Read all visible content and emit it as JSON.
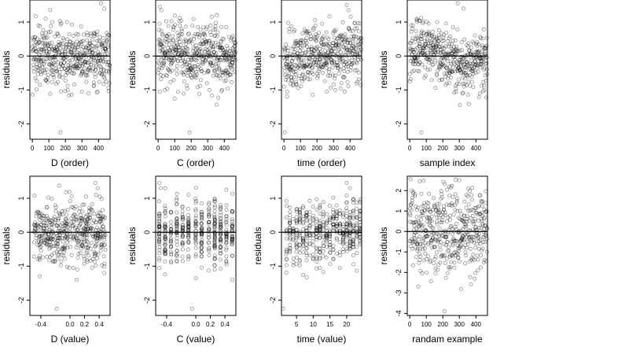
{
  "chart_data": [
    {
      "type": "scatter",
      "xlabel": "D (order)",
      "ylabel": "residuals",
      "xlim": [
        -15,
        470
      ],
      "ylim": [
        -2.45,
        1.65
      ],
      "xticks": [
        0,
        100,
        200,
        300,
        400
      ],
      "yticks": [
        -2,
        -1,
        0,
        1
      ],
      "ref_line": 0,
      "n": 470,
      "trend": "none",
      "y_spread": 0.45,
      "x_kind": "index",
      "highlight": [
        {
          "x": 40,
          "y": 0.05
        },
        {
          "x": 170,
          "y": -2.25
        },
        {
          "x": 300,
          "y": -1.05
        },
        {
          "x": 340,
          "y": -1.1
        },
        {
          "x": 415,
          "y": 1.55
        },
        {
          "x": 435,
          "y": 1.4
        },
        {
          "x": 80,
          "y": 1.1
        },
        {
          "x": 120,
          "y": 1.0
        }
      ]
    },
    {
      "type": "scatter",
      "xlabel": "C (order)",
      "ylabel": "residuals",
      "xlim": [
        -15,
        470
      ],
      "ylim": [
        -2.45,
        1.65
      ],
      "xticks": [
        0,
        100,
        200,
        300,
        400
      ],
      "yticks": [
        -2,
        -1,
        0,
        1
      ],
      "ref_line": 0,
      "n": 470,
      "trend": "none",
      "y_spread": 0.45,
      "x_kind": "index",
      "highlight": [
        {
          "x": 10,
          "y": 1.45
        },
        {
          "x": 20,
          "y": 1.35
        },
        {
          "x": 190,
          "y": -2.25
        },
        {
          "x": 10,
          "y": -1.05
        },
        {
          "x": 40,
          "y": -1.0
        },
        {
          "x": 120,
          "y": -1.05
        },
        {
          "x": 310,
          "y": -1.0
        }
      ]
    },
    {
      "type": "scatter",
      "xlabel": "time (order)",
      "ylabel": "residuals",
      "xlim": [
        -15,
        470
      ],
      "ylim": [
        -2.45,
        1.65
      ],
      "xticks": [
        0,
        100,
        200,
        300,
        400
      ],
      "yticks": [
        -2,
        -1,
        0,
        1
      ],
      "ref_line": 0,
      "n": 470,
      "trend": "slight increase",
      "y_spread": 0.45,
      "x_kind": "index",
      "highlight": [
        {
          "x": 5,
          "y": -2.25
        },
        {
          "x": 380,
          "y": 1.5
        },
        {
          "x": 390,
          "y": 1.35
        },
        {
          "x": 20,
          "y": -1.05
        },
        {
          "x": 260,
          "y": -1.05
        },
        {
          "x": 310,
          "y": -1.0
        }
      ]
    },
    {
      "type": "scatter",
      "xlabel": "sample index",
      "ylabel": "residuals",
      "xlim": [
        -15,
        470
      ],
      "ylim": [
        -2.45,
        1.65
      ],
      "xticks": [
        0,
        100,
        200,
        300,
        400
      ],
      "yticks": [
        -2,
        -1,
        0,
        1
      ],
      "ref_line": 0,
      "n": 470,
      "trend": "wave",
      "y_spread": 0.42,
      "x_kind": "index",
      "highlight": [
        {
          "x": 70,
          "y": -2.25
        },
        {
          "x": 290,
          "y": 1.55
        },
        {
          "x": 325,
          "y": 1.4
        },
        {
          "x": 280,
          "y": -1.05
        },
        {
          "x": 450,
          "y": -1.0
        }
      ]
    },
    {
      "type": "scatter",
      "xlabel": "D (value)",
      "ylabel": "residuals",
      "xlim": [
        -0.55,
        0.55
      ],
      "ylim": [
        -2.45,
        1.65
      ],
      "xticks": [
        -0.4,
        0.0,
        0.2,
        0.4
      ],
      "yticks": [
        -2,
        -1,
        0,
        1
      ],
      "ref_line": 0,
      "n": 470,
      "trend": "none",
      "y_spread": 0.45,
      "x_kind": "jitter",
      "highlight": [
        {
          "x": -0.18,
          "y": -2.25
        },
        {
          "x": 0.35,
          "y": 1.45
        },
        {
          "x": 0.38,
          "y": 1.3
        },
        {
          "x": 0.05,
          "y": -1.05
        },
        {
          "x": 0.1,
          "y": -1.1
        }
      ]
    },
    {
      "type": "scatter",
      "xlabel": "C (value)",
      "ylabel": "residuals",
      "xlim": [
        -0.55,
        0.55
      ],
      "ylim": [
        -2.45,
        1.65
      ],
      "xticks": [
        -0.4,
        0.0,
        0.2,
        0.4
      ],
      "yticks": [
        -2,
        -1,
        0,
        1
      ],
      "ref_line": 0,
      "n": 470,
      "trend": "none",
      "y_spread": 0.45,
      "x_kind": "columns",
      "columns": [
        -0.5,
        -0.42,
        -0.34,
        -0.26,
        -0.18,
        -0.1,
        0.0,
        0.08,
        0.18,
        0.26,
        0.34,
        0.42,
        0.5
      ],
      "highlight": [
        {
          "x": -0.5,
          "y": 1.45
        },
        {
          "x": -0.48,
          "y": 1.3
        },
        {
          "x": -0.05,
          "y": -2.25
        },
        {
          "x": -0.5,
          "y": -1.05
        },
        {
          "x": 0.26,
          "y": -1.1
        }
      ]
    },
    {
      "type": "scatter",
      "xlabel": "time (value)",
      "ylabel": "residuals",
      "xlim": [
        0.5,
        24.5
      ],
      "ylim": [
        -2.45,
        1.65
      ],
      "xticks": [
        5,
        10,
        15,
        20
      ],
      "yticks": [
        -2,
        -1,
        0,
        1
      ],
      "ref_line": 0,
      "n": 470,
      "trend": "slight increase",
      "y_spread": 0.45,
      "x_kind": "columns",
      "columns": [
        2,
        3,
        4,
        5,
        6,
        7,
        8,
        9,
        10,
        11,
        12,
        13,
        14,
        15,
        16,
        17,
        18,
        19,
        20,
        21,
        22,
        23,
        24
      ],
      "highlight": [
        {
          "x": 1,
          "y": -2.25
        },
        {
          "x": 20,
          "y": 1.45
        },
        {
          "x": 21,
          "y": 1.3
        },
        {
          "x": 12,
          "y": -1.05
        },
        {
          "x": 18,
          "y": -1.05
        }
      ]
    },
    {
      "type": "scatter",
      "xlabel": "randam example",
      "ylabel": "residuals",
      "xlim": [
        -15,
        470
      ],
      "ylim": [
        -4.1,
        2.7
      ],
      "xticks": [
        0,
        100,
        200,
        300,
        400
      ],
      "yticks": [
        -4,
        -3,
        -2,
        -1,
        0,
        1,
        2
      ],
      "ref_line": 0,
      "n": 470,
      "trend": "none",
      "y_spread": 1.0,
      "x_kind": "index",
      "highlight": [
        {
          "x": 210,
          "y": -3.9
        },
        {
          "x": 300,
          "y": 2.5
        },
        {
          "x": 60,
          "y": 2.45
        }
      ]
    }
  ]
}
